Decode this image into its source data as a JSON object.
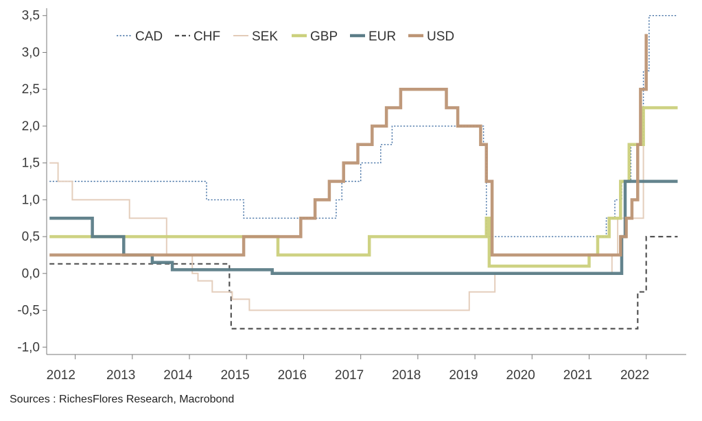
{
  "source_note": "Sources : RichesFlores Research, Macrobond",
  "chart_data": {
    "type": "line",
    "step": true,
    "xlim": [
      2011.55,
      2022.75
    ],
    "ylim": [
      -1.1,
      3.6
    ],
    "yticks": [
      -1.0,
      -0.5,
      0.0,
      0.5,
      1.0,
      1.5,
      2.0,
      2.5,
      3.0,
      3.5
    ],
    "ytick_labels": [
      "-1,0",
      "-0,5",
      "0,0",
      "0,5",
      "1,0",
      "1,5",
      "2,0",
      "2,5",
      "3,0",
      "3,5"
    ],
    "xtick_labels": [
      {
        "label": "2012",
        "x": 2011.8
      },
      {
        "label": "2013",
        "x": 2012.85
      },
      {
        "label": "2014",
        "x": 2013.85
      },
      {
        "label": "2015",
        "x": 2014.85
      },
      {
        "label": "2016",
        "x": 2015.85
      },
      {
        "label": "2017",
        "x": 2016.85
      },
      {
        "label": "2018",
        "x": 2017.85
      },
      {
        "label": "2019",
        "x": 2018.85
      },
      {
        "label": "2020",
        "x": 2019.85
      },
      {
        "label": "2021",
        "x": 2020.85
      },
      {
        "label": "2022",
        "x": 2021.85
      }
    ],
    "xtick_marks": [
      2012.05,
      2013.05,
      2014.05,
      2015.05,
      2016.05,
      2017.05,
      2018.05,
      2019.05,
      2020.05,
      2021.05,
      2022.05
    ],
    "legend_position": "top-left",
    "series": [
      {
        "name": "CAD",
        "color": "#3b6aa0",
        "style": "dotted",
        "width": 1.4,
        "x": [
          2011.6,
          2013.6,
          2014.35,
          2015.0,
          2015.6,
          2016.0,
          2016.55,
          2016.62,
          2016.72,
          2016.8,
          2017.05,
          2017.4,
          2017.6,
          2017.9,
          2018.6,
          2019.2,
          2019.25,
          2021.2,
          2021.35,
          2021.5,
          2021.62,
          2021.78,
          2022.0,
          2022.1,
          2022.6
        ],
        "y": [
          1.25,
          1.25,
          1.0,
          0.75,
          0.75,
          0.75,
          0.75,
          1.0,
          1.25,
          1.25,
          1.5,
          1.75,
          2.0,
          2.0,
          2.0,
          1.75,
          0.5,
          0.5,
          0.75,
          1.0,
          1.25,
          1.75,
          2.75,
          3.5,
          3.5
        ]
      },
      {
        "name": "CHF",
        "color": "#4a4a4a",
        "style": "dashed",
        "width": 2.2,
        "x": [
          2011.6,
          2013.8,
          2013.9,
          2014.1,
          2014.7,
          2014.75,
          2014.78,
          2015.0,
          2021.8,
          2021.9,
          2022.0,
          2022.05,
          2022.6
        ],
        "y": [
          0.13,
          0.13,
          0.13,
          0.13,
          0.13,
          -0.25,
          -0.75,
          -0.75,
          -0.75,
          -0.25,
          -0.25,
          0.5,
          0.5
        ]
      },
      {
        "name": "SEK",
        "color": "#e3cbb8",
        "style": "solid",
        "width": 2.0,
        "x": [
          2011.6,
          2011.75,
          2012.0,
          2012.55,
          2013.0,
          2013.55,
          2013.65,
          2013.82,
          2014.0,
          2014.1,
          2014.2,
          2014.45,
          2014.8,
          2015.1,
          2015.65,
          2017.95,
          2018.95,
          2019.4,
          2021.3,
          2021.45,
          2021.55,
          2021.7,
          2022.0
        ],
        "y": [
          1.5,
          1.25,
          1.0,
          1.0,
          0.75,
          0.75,
          0.25,
          0.25,
          0.25,
          0.0,
          -0.1,
          -0.25,
          -0.35,
          -0.5,
          -0.5,
          -0.5,
          -0.25,
          0.0,
          0.0,
          0.25,
          0.75,
          0.75,
          1.75
        ]
      },
      {
        "name": "GBP",
        "color": "#cbd07c",
        "style": "solid",
        "width": 4.5,
        "x": [
          2011.6,
          2014.6,
          2015.6,
          2016.5,
          2017.2,
          2019.25,
          2019.3,
          2020.95,
          2021.05,
          2021.2,
          2021.4,
          2021.6,
          2021.75,
          2022.0,
          2022.6
        ],
        "y": [
          0.5,
          0.5,
          0.25,
          0.25,
          0.5,
          0.75,
          0.1,
          0.1,
          0.25,
          0.5,
          0.75,
          1.25,
          1.75,
          2.25,
          2.25
        ]
      },
      {
        "name": "EUR",
        "color": "#5b7c87",
        "style": "solid",
        "width": 4.5,
        "x": [
          2011.6,
          2012.35,
          2012.9,
          2013.4,
          2013.75,
          2014.0,
          2014.1,
          2015.5,
          2015.6,
          2021.55,
          2021.62,
          2021.68,
          2021.72,
          2022.6
        ],
        "y": [
          0.75,
          0.5,
          0.25,
          0.15,
          0.05,
          0.05,
          0.05,
          0.0,
          0.0,
          0.0,
          0.5,
          1.25,
          1.25,
          1.25
        ]
      },
      {
        "name": "USD",
        "color": "#bc9474",
        "style": "solid",
        "width": 4.5,
        "x": [
          2011.6,
          2015.0,
          2016.0,
          2016.25,
          2016.5,
          2016.75,
          2017.0,
          2017.25,
          2017.5,
          2017.75,
          2018.0,
          2018.55,
          2018.75,
          2019.15,
          2019.25,
          2019.35,
          2021.5,
          2021.6,
          2021.7,
          2021.8,
          2021.9,
          2021.95,
          2022.05
        ],
        "y": [
          0.25,
          0.5,
          0.75,
          1.0,
          1.25,
          1.5,
          1.75,
          2.0,
          2.25,
          2.5,
          2.5,
          2.25,
          2.0,
          1.75,
          1.25,
          0.25,
          0.25,
          0.5,
          0.75,
          1.0,
          1.75,
          2.5,
          3.25
        ]
      }
    ]
  }
}
